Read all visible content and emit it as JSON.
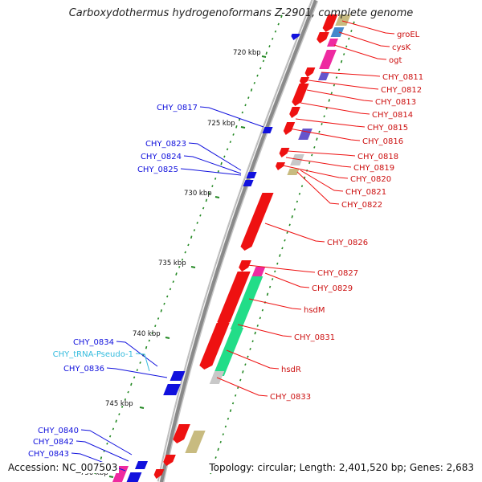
{
  "title": "Carboxydothermus hydrogenoformans Z-2901, complete genome",
  "accession": "Accession: NC_007503",
  "summary": "Topology: circular; Length: 2,401,520 bp; Genes: 2,683",
  "ticks": [
    "720 kbp",
    "725 kbp",
    "730 kbp",
    "735 kbp",
    "740 kbp",
    "745 kbp",
    "750 kbp"
  ],
  "right_labels": [
    "groEL",
    "cysK",
    "ogt",
    "CHY_0811",
    "CHY_0812",
    "CHY_0813",
    "CHY_0814",
    "CHY_0815",
    "CHY_0816",
    "CHY_0818",
    "CHY_0819",
    "CHY_0820",
    "CHY_0821",
    "CHY_0822",
    "CHY_0826",
    "CHY_0827",
    "CHY_0829",
    "hsdM",
    "CHY_0831",
    "hsdR",
    "CHY_0833"
  ],
  "left_labels": [
    "CHY_0817",
    "CHY_0823",
    "CHY_0824",
    "CHY_0825",
    "CHY_0834",
    "CHY_tRNA-Pseudo-1",
    "CHY_0836",
    "CHY_0840",
    "CHY_0842",
    "CHY_0843"
  ],
  "colors": {
    "forward_gene": "#ee1111",
    "reverse_gene": "#1111dd",
    "trna": "#33bbdd",
    "backbone": "#8a8a8a",
    "gc_dots": "#228822",
    "magenta": "#ee2aa0",
    "green": "#22dd88",
    "khaki": "#c8bb80",
    "purple": "#6655cc",
    "steel": "#4488cc",
    "grey": "#c8c8c8"
  }
}
